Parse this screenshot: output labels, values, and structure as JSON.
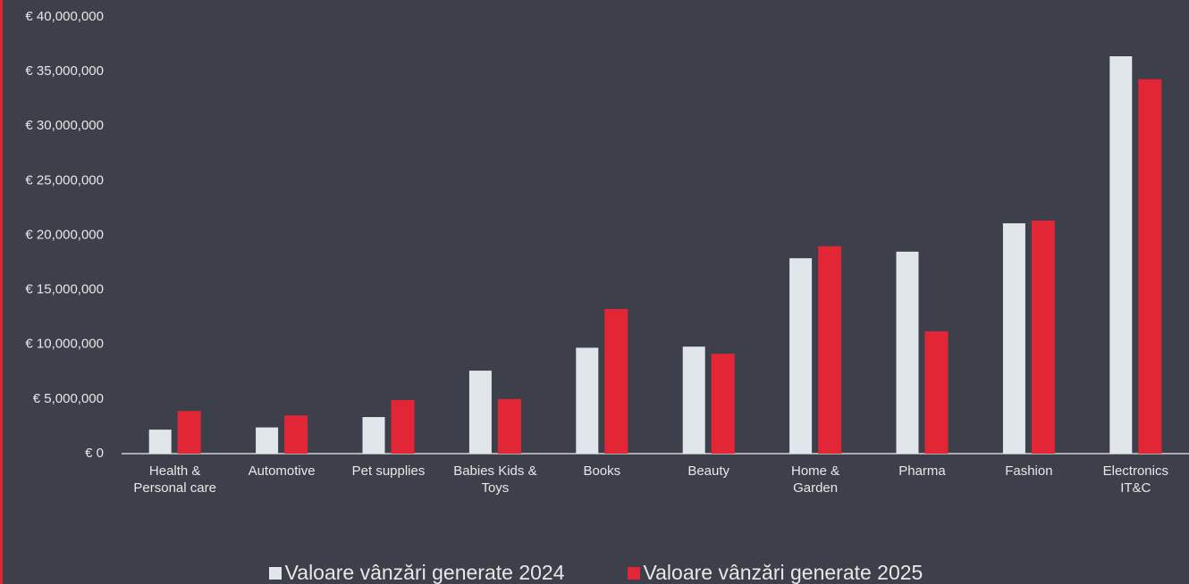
{
  "chart_data": {
    "type": "bar",
    "categories": [
      "Health &\nPersonal care",
      "Automotive",
      "Pet supplies",
      "Babies Kids &\nToys",
      "Books",
      "Beauty",
      "Home &\nGarden",
      "Pharma",
      "Fashion",
      "Electronics\nIT&C"
    ],
    "series": [
      {
        "name": "Valoare vânzări generate 2024",
        "color": "#e1e6ea",
        "values": [
          2200000,
          2400000,
          3350000,
          7600000,
          9700000,
          9800000,
          17900000,
          18500000,
          21100000,
          36400000
        ]
      },
      {
        "name": "Valoare vânzări generate 2025",
        "color": "#e32636",
        "values": [
          3900000,
          3500000,
          4900000,
          5000000,
          13250000,
          9150000,
          19000000,
          11200000,
          21350000,
          34300000
        ]
      }
    ],
    "ylim": [
      0,
      40000000
    ],
    "yticks": [
      {
        "value": 0,
        "label": "€ 0"
      },
      {
        "value": 5000000,
        "label": "€ 5,000,000"
      },
      {
        "value": 10000000,
        "label": "€ 10,000,000"
      },
      {
        "value": 15000000,
        "label": "€ 15,000,000"
      },
      {
        "value": 20000000,
        "label": "€ 20,000,000"
      },
      {
        "value": 25000000,
        "label": "€ 25,000,000"
      },
      {
        "value": 30000000,
        "label": "€ 30,000,000"
      },
      {
        "value": 35000000,
        "label": "€ 35,000,000"
      },
      {
        "value": 40000000,
        "label": "€ 40,000,000"
      }
    ],
    "grid": false,
    "legend": "bottom"
  }
}
